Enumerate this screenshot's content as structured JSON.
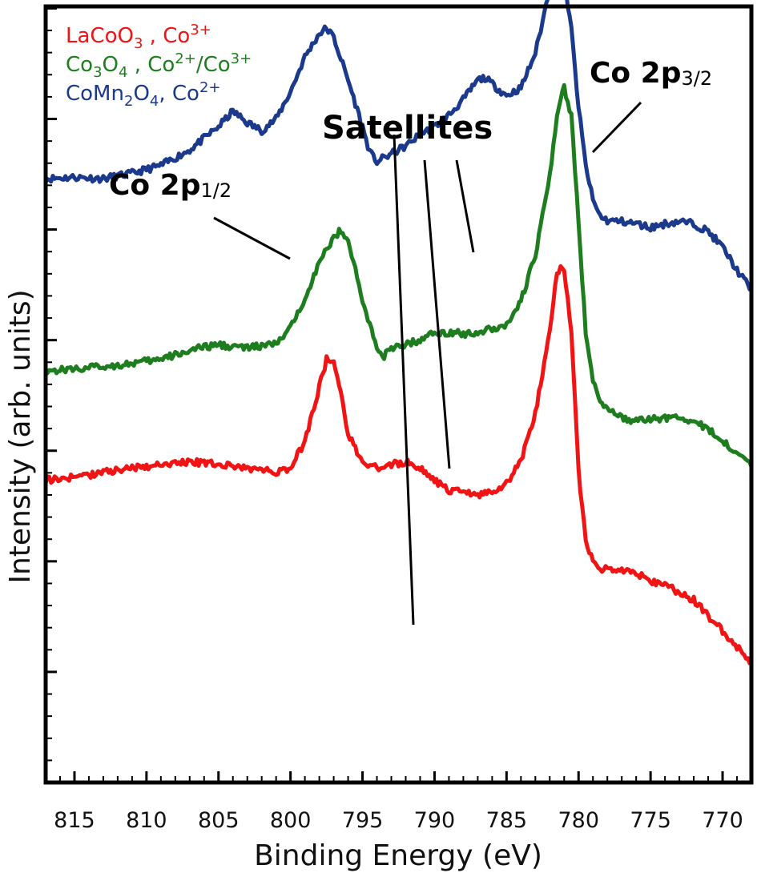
{
  "chart_data": {
    "type": "line",
    "title": "",
    "xlabel": "Binding Energy (eV)",
    "ylabel": "Intensity (arb. units)",
    "xlim": [
      817,
      768
    ],
    "x_reversed": true,
    "ylim": [
      0,
      100
    ],
    "grid": false,
    "x_ticks": [
      815,
      810,
      805,
      800,
      795,
      790,
      785,
      780,
      775,
      770
    ],
    "x_tick_labels": [
      "815",
      "810",
      "805",
      "800",
      "795",
      "790",
      "785",
      "780",
      "775",
      "770"
    ],
    "legend": {
      "position": "top-left",
      "entries": [
        {
          "series": "LaCoO3",
          "parts": [
            [
              "LaCoO",
              "n"
            ],
            [
              "3",
              "sub"
            ],
            [
              " , Co",
              "n"
            ],
            [
              "3+",
              "sup"
            ]
          ]
        },
        {
          "series": "Co3O4",
          "parts": [
            [
              "Co",
              "n"
            ],
            [
              "3",
              "sub"
            ],
            [
              "O",
              "n"
            ],
            [
              "4",
              "sub"
            ],
            [
              " , Co",
              "n"
            ],
            [
              "2+",
              "sup"
            ],
            [
              "/Co",
              "n"
            ],
            [
              "3+",
              "sup"
            ]
          ]
        },
        {
          "series": "CoMn2O4",
          "parts": [
            [
              "CoMn",
              "n"
            ],
            [
              "2",
              "sub"
            ],
            [
              "O",
              "n"
            ],
            [
              "4",
              "sub"
            ],
            [
              ", Co",
              "n"
            ],
            [
              "2+",
              "sup"
            ]
          ]
        }
      ]
    },
    "annotations": [
      {
        "id": "co2p32",
        "main": "Co 2p",
        "sub": "3/2"
      },
      {
        "id": "satellites",
        "main": "Satellites",
        "sub": ""
      },
      {
        "id": "co2p12",
        "main": "Co 2p",
        "sub": "1/2"
      }
    ],
    "series": [
      {
        "name": "CoMn2O4",
        "color": "#1b3a8c",
        "x": [
          817,
          815,
          813,
          811,
          809,
          807,
          805,
          804,
          803,
          802,
          801,
          800,
          799,
          798,
          797.5,
          797,
          796,
          795,
          794.5,
          794,
          793.5,
          793,
          792,
          791,
          790,
          789,
          788,
          787,
          786.5,
          786,
          785,
          784,
          783,
          782.5,
          782,
          781.5,
          781,
          780.5,
          780,
          779.5,
          779,
          778.5,
          778,
          777,
          776,
          775,
          774,
          773,
          772,
          771,
          770,
          769,
          768
        ],
        "y": [
          77.8,
          78,
          77.8,
          78.5,
          79.5,
          81.5,
          84.5,
          86.5,
          85,
          84,
          85.5,
          89,
          93.5,
          96.5,
          97.2,
          96,
          90.5,
          84.5,
          81.2,
          80,
          80.5,
          81,
          82,
          83.5,
          84.5,
          86,
          88,
          90.5,
          90.8,
          90,
          88.5,
          89.5,
          94,
          98,
          102.5,
          105,
          103.5,
          97,
          87,
          79.5,
          75,
          73,
          72.4,
          72.3,
          72,
          71.5,
          72,
          72.3,
          72,
          71,
          69,
          66,
          63.5
        ]
      },
      {
        "name": "Co3O4",
        "color": "#1e7d1e",
        "x": [
          817,
          815,
          813,
          811,
          809,
          807,
          805,
          803,
          801,
          800,
          799,
          798,
          797,
          796.5,
          796,
          795,
          794,
          793.5,
          793,
          792,
          791,
          790,
          789,
          788,
          787,
          786,
          785,
          784,
          783,
          782,
          781.5,
          781,
          780.5,
          780,
          779.5,
          779,
          778.5,
          778,
          777,
          776,
          775,
          774,
          773,
          772,
          771,
          770,
          769,
          768
        ],
        "y": [
          53,
          53.3,
          53.6,
          54,
          54.5,
          55.7,
          56.4,
          56,
          56.5,
          58.5,
          62.5,
          67,
          70.2,
          71.2,
          70,
          62,
          56,
          55,
          55.8,
          56.5,
          57,
          58,
          58,
          57.8,
          58,
          58.5,
          59,
          62,
          68,
          78,
          86,
          89.5,
          86,
          72,
          58,
          52,
          49,
          48,
          47,
          46.5,
          46.8,
          47,
          47,
          46.5,
          45.5,
          44,
          42.5,
          41
        ]
      },
      {
        "name": "LaCoO3",
        "color": "#f01414",
        "x": [
          817,
          815,
          813,
          811,
          809,
          807,
          805,
          803,
          801,
          800,
          799,
          798,
          797.5,
          797,
          796.5,
          796,
          795,
          794,
          793,
          792,
          791,
          790,
          789,
          788,
          787,
          786,
          785,
          784,
          783,
          782,
          781.5,
          781,
          780.5,
          780,
          779.5,
          779,
          778.5,
          778,
          777,
          776,
          775,
          774,
          773,
          772,
          771,
          770,
          769,
          768
        ],
        "y": [
          39,
          39.3,
          40,
          40.5,
          41,
          41.3,
          41,
          40.5,
          40,
          40.5,
          44,
          51,
          54.5,
          54,
          50,
          45,
          41,
          40.5,
          41,
          41.3,
          40.5,
          39,
          37.5,
          37.5,
          37,
          37.5,
          38.5,
          41.5,
          47.5,
          58,
          66,
          66.2,
          58,
          40,
          31,
          28.5,
          27.5,
          27.6,
          27.4,
          27,
          26,
          25.5,
          24.5,
          23.5,
          21.5,
          19.5,
          17.5,
          15.5
        ]
      }
    ]
  }
}
